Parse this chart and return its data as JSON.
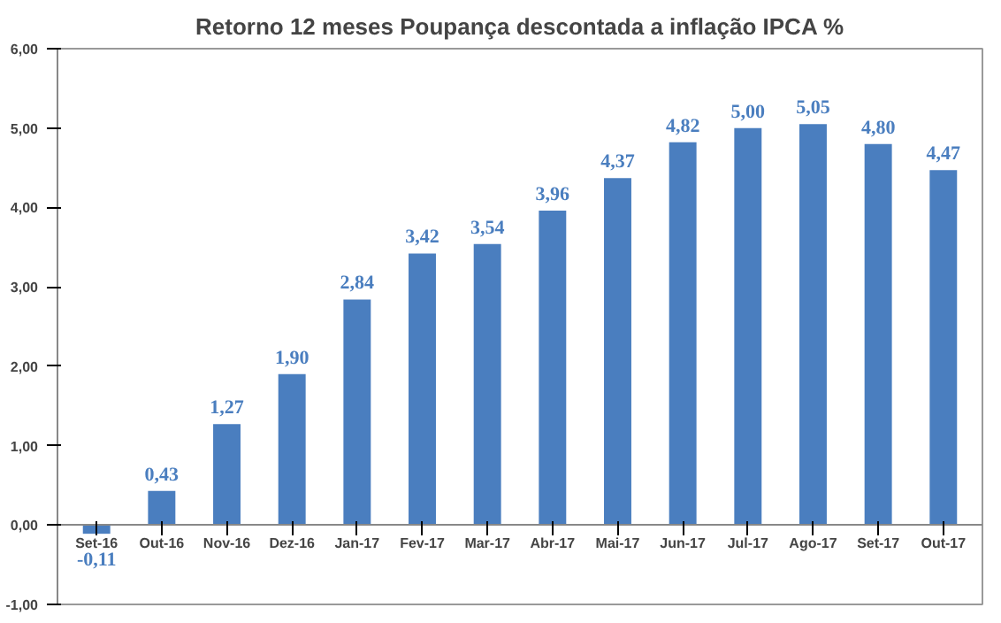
{
  "chart_data": {
    "type": "bar",
    "title": "Retorno 12 meses Poupança descontada a inflação IPCA %",
    "categories": [
      "Set-16",
      "Out-16",
      "Nov-16",
      "Dez-16",
      "Jan-17",
      "Fev-17",
      "Mar-17",
      "Abr-17",
      "Mai-17",
      "Jun-17",
      "Jul-17",
      "Ago-17",
      "Set-17",
      "Out-17"
    ],
    "values": [
      -0.11,
      0.43,
      1.27,
      1.9,
      2.84,
      3.42,
      3.54,
      3.96,
      4.37,
      4.82,
      5.0,
      5.05,
      4.8,
      4.47
    ],
    "value_labels": [
      "-0,11",
      "0,43",
      "1,27",
      "1,90",
      "2,84",
      "3,42",
      "3,54",
      "3,96",
      "4,37",
      "4,82",
      "5,00",
      "5,05",
      "4,80",
      "4,47"
    ],
    "color": "#4a7ebf",
    "ylim": [
      -1,
      6
    ],
    "yticks": [
      {
        "value": -1,
        "label": "-1,00"
      },
      {
        "value": 0,
        "label": "0,00"
      },
      {
        "value": 1,
        "label": "1,00"
      },
      {
        "value": 2,
        "label": "2,00"
      },
      {
        "value": 3,
        "label": "3,00"
      },
      {
        "value": 4,
        "label": "4,00"
      },
      {
        "value": 5,
        "label": "5,00"
      },
      {
        "value": 6,
        "label": "6,00"
      }
    ],
    "grid": false
  }
}
